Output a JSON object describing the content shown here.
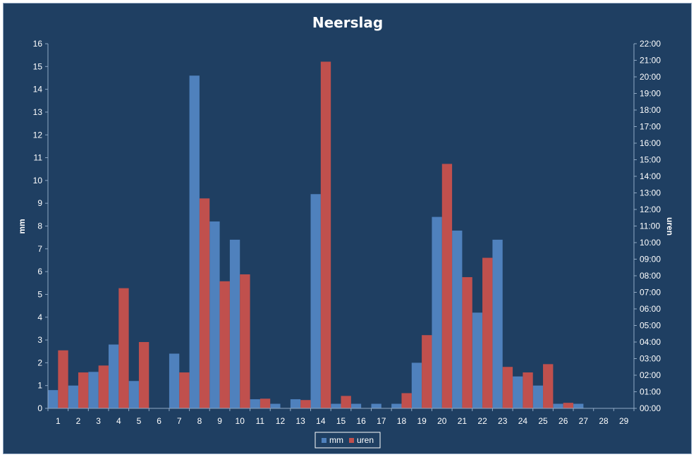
{
  "chart_data": {
    "type": "bar",
    "title": "Neerslag",
    "categories": [
      "1",
      "2",
      "3",
      "4",
      "5",
      "6",
      "7",
      "8",
      "9",
      "10",
      "11",
      "12",
      "13",
      "14",
      "15",
      "16",
      "17",
      "18",
      "19",
      "20",
      "21",
      "22",
      "23",
      "24",
      "25",
      "26",
      "27",
      "28",
      "29"
    ],
    "series": [
      {
        "name": "mm",
        "axis": "left",
        "color": "#4F81BD",
        "values": [
          0.8,
          1.0,
          1.6,
          2.8,
          1.2,
          0,
          2.4,
          14.6,
          8.2,
          7.4,
          0.4,
          0.2,
          0.4,
          9.4,
          0.2,
          0.2,
          0.2,
          0.2,
          2.0,
          8.4,
          7.8,
          4.2,
          7.4,
          1.4,
          1.0,
          0.2,
          0.2,
          0,
          0
        ]
      },
      {
        "name": "uren",
        "axis": "right",
        "color": "#C0504D",
        "values": [
          "03:30",
          "02:10",
          "02:35",
          "07:15",
          "04:00",
          "00:00",
          "02:10",
          "12:40",
          "07:40",
          "08:05",
          "00:35",
          "00:00",
          "00:30",
          "20:55",
          "00:45",
          "00:00",
          "00:00",
          "00:55",
          "04:25",
          "14:45",
          "07:55",
          "09:05",
          "02:30",
          "02:10",
          "02:40",
          "00:20",
          "00:00",
          "00:00",
          "00:00"
        ]
      }
    ],
    "ylabel": "mm",
    "ylim": [
      0,
      16
    ],
    "yticks": [
      "0",
      "1",
      "2",
      "3",
      "4",
      "5",
      "6",
      "7",
      "8",
      "9",
      "10",
      "11",
      "12",
      "13",
      "14",
      "15",
      "16"
    ],
    "y2label": "uren",
    "y2lim": [
      "00:00",
      "22:00"
    ],
    "y2ticks": [
      "00:00",
      "01:00",
      "02:00",
      "03:00",
      "04:00",
      "05:00",
      "06:00",
      "07:00",
      "08:00",
      "09:00",
      "10:00",
      "11:00",
      "12:00",
      "13:00",
      "14:00",
      "15:00",
      "16:00",
      "17:00",
      "18:00",
      "19:00",
      "20:00",
      "21:00",
      "22:00"
    ],
    "grid": false,
    "legend_position": "bottom",
    "background": "#1F3F62",
    "text_color": "#FFFFFF"
  }
}
